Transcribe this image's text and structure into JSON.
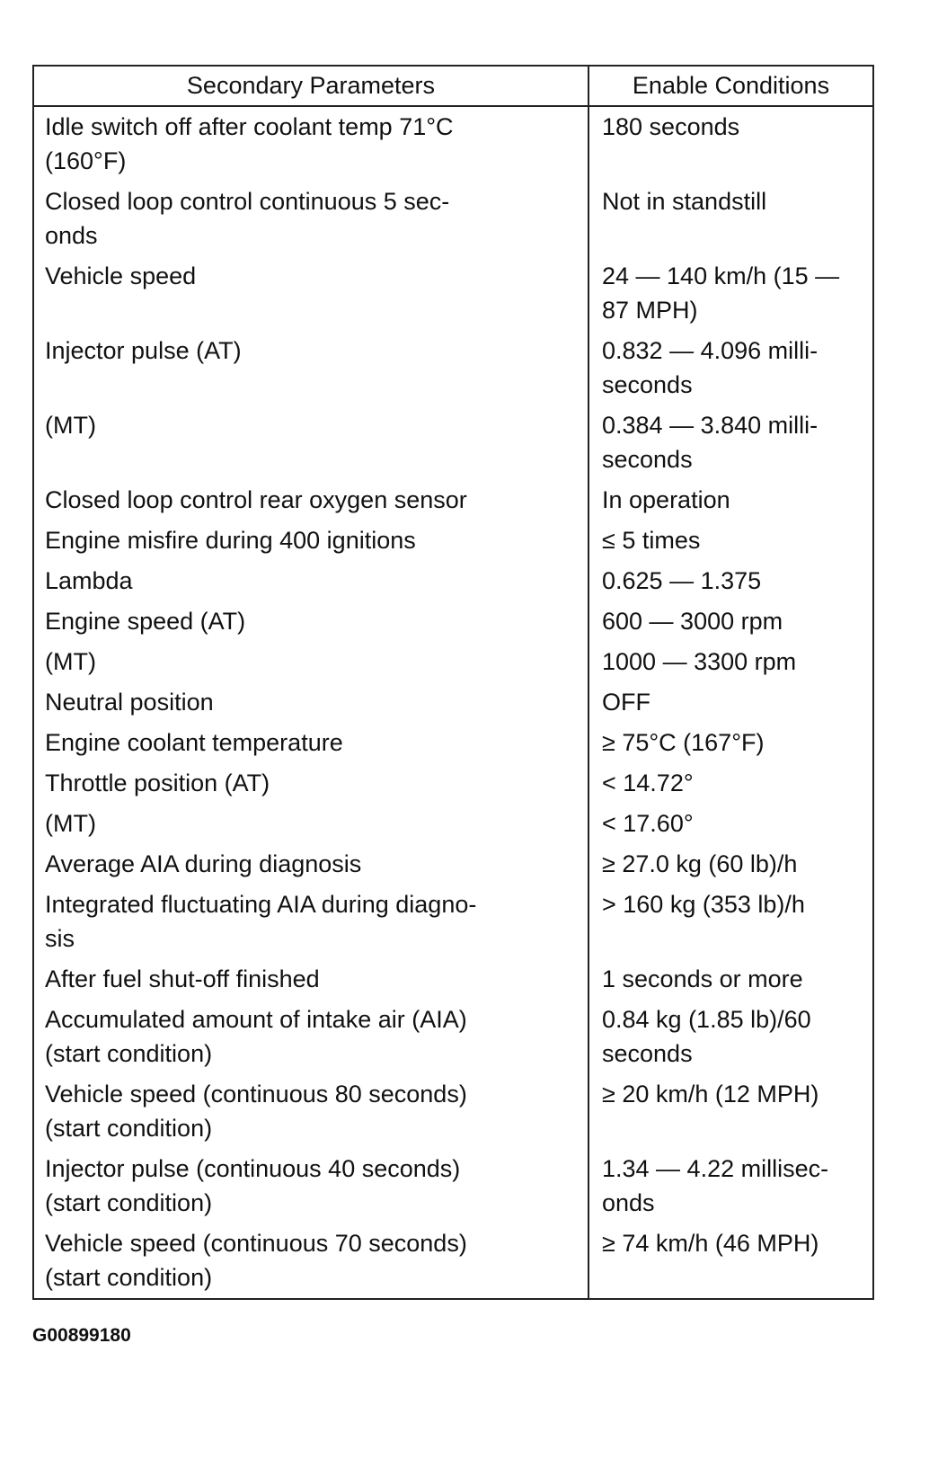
{
  "table": {
    "headers": [
      "Secondary Parameters",
      "Enable Conditions"
    ],
    "rows": [
      [
        "Idle switch off after coolant temp 71°C\n(160°F)",
        "180 seconds"
      ],
      [
        "Closed loop control continuous 5 sec-\nonds",
        "Not in standstill"
      ],
      [
        "Vehicle speed",
        "24 — 140 km/h (15 —\n87 MPH)"
      ],
      [
        "Injector pulse (AT)",
        "0.832 — 4.096 milli-\nseconds"
      ],
      [
        "(MT)",
        "0.384 — 3.840 milli-\nseconds"
      ],
      [
        "Closed loop control rear oxygen sensor",
        "In operation"
      ],
      [
        "Engine misfire during 400 ignitions",
        "≤ 5 times"
      ],
      [
        "Lambda",
        "0.625 — 1.375"
      ],
      [
        "Engine speed (AT)",
        "600 — 3000 rpm"
      ],
      [
        "(MT)",
        "1000 — 3300 rpm"
      ],
      [
        "Neutral position",
        "OFF"
      ],
      [
        "Engine coolant temperature",
        "≥ 75°C (167°F)"
      ],
      [
        "Throttle position (AT)",
        "< 14.72°"
      ],
      [
        "(MT)",
        "< 17.60°"
      ],
      [
        "Average AIA during diagnosis",
        "≥ 27.0 kg (60 lb)/h"
      ],
      [
        "Integrated fluctuating AIA during diagno-\nsis",
        "> 160 kg (353 lb)/h"
      ],
      [
        "After fuel shut-off finished",
        "1 seconds or more"
      ],
      [
        "Accumulated amount of intake air (AIA)\n(start condition)",
        "0.84 kg (1.85 lb)/60\nseconds"
      ],
      [
        "Vehicle speed (continuous 80 seconds)\n(start condition)",
        "≥ 20 km/h (12 MPH)"
      ],
      [
        "Injector pulse (continuous 40 seconds)\n(start condition)",
        "1.34 — 4.22 millisec-\nonds"
      ],
      [
        "Vehicle speed (continuous 70 seconds)\n(start condition)",
        "≥ 74 km/h (46 MPH)"
      ]
    ]
  },
  "figure_code": "G00899180"
}
